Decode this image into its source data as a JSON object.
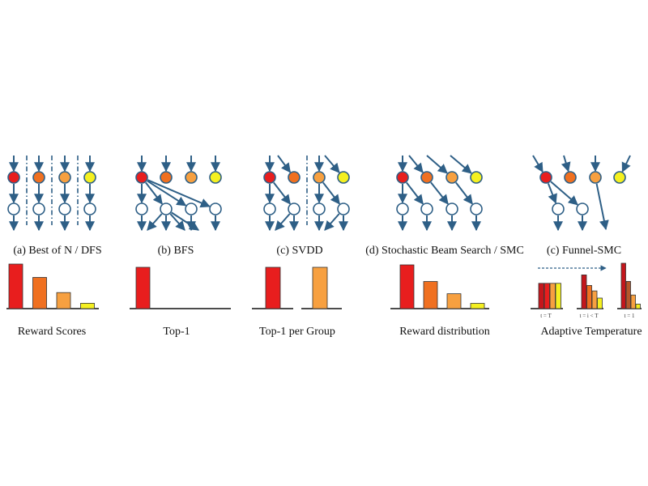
{
  "colors": {
    "edge": "#2e5f86",
    "node_outline": "#2e5f86",
    "red": "#e81e1e",
    "orange_dark": "#f07020",
    "orange_light": "#f7a040",
    "yellow": "#f5f020",
    "brown": "#b5562a",
    "dark_red": "#c4161c"
  },
  "panels": [
    {
      "id": "a",
      "caption": "(a) Best of N / DFS",
      "sublabel": "Reward Scores"
    },
    {
      "id": "b",
      "caption": "(b) BFS",
      "sublabel": "Top-1"
    },
    {
      "id": "c",
      "caption": "(c) SVDD",
      "sublabel": "Top-1 per Group"
    },
    {
      "id": "d",
      "caption": "(d) Stochastic Beam Search / SMC",
      "sublabel": "Reward distribution"
    },
    {
      "id": "e",
      "caption": "(c) Funnel-SMC",
      "sublabel": "Adaptive Temperature",
      "ticks": [
        "t = T",
        "t  = i < T",
        "t = 1"
      ]
    }
  ],
  "bar_charts": {
    "a": {
      "values": [
        1.0,
        0.7,
        0.36,
        0.12
      ],
      "colors": [
        "red",
        "orange_dark",
        "orange_light",
        "yellow"
      ]
    },
    "b": {
      "values": [
        1.0
      ],
      "colors": [
        "red"
      ]
    },
    "c": {
      "values": [
        1.0,
        1.0
      ],
      "colors": [
        "red",
        "orange_light"
      ]
    },
    "d": {
      "values": [
        1.0,
        0.62,
        0.34,
        0.12
      ],
      "colors": [
        "red",
        "orange_dark",
        "orange_light",
        "yellow"
      ]
    },
    "e": [
      {
        "values": [
          0.65,
          0.65,
          0.65,
          0.65
        ],
        "colors": [
          "dark_red",
          "red",
          "orange_light",
          "yellow"
        ]
      },
      {
        "values": [
          0.8,
          0.55,
          0.42,
          0.25
        ],
        "colors": [
          "dark_red",
          "orange_dark",
          "orange_light",
          "yellow"
        ]
      },
      {
        "values": [
          1.0,
          0.6,
          0.3,
          0.1
        ],
        "colors": [
          "dark_red",
          "brown",
          "orange_light",
          "yellow"
        ]
      }
    ]
  }
}
